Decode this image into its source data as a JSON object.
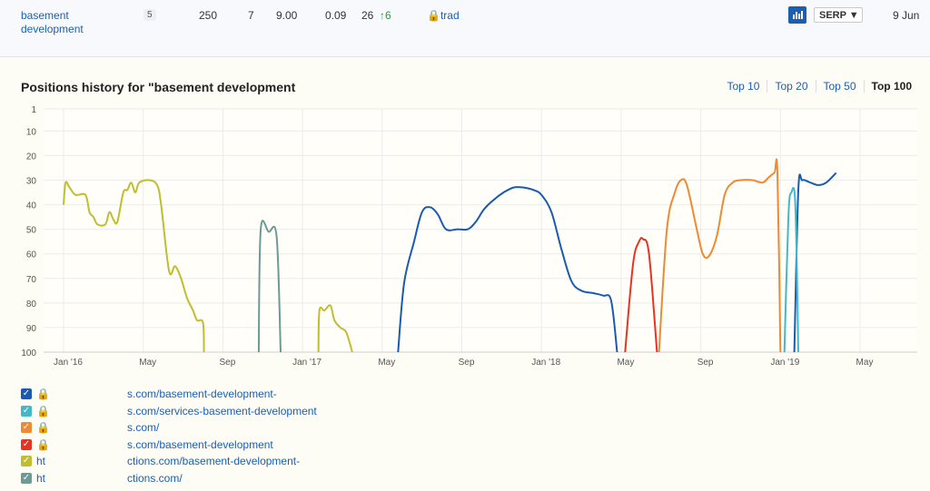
{
  "keyword_row": {
    "keyword": "basement development",
    "badge": "5",
    "volume": "250",
    "kd": "7",
    "cpc": "9.00",
    "ctr": "0.09",
    "position": "26",
    "position_change": "↑6",
    "tag": "trad",
    "serp_label": "SERP ▼",
    "date": "9 Jun"
  },
  "section": {
    "title": "Positions history for \"basement development"
  },
  "tabs": [
    {
      "label": "Top 10",
      "active": false
    },
    {
      "label": "Top 20",
      "active": false
    },
    {
      "label": "Top 50",
      "active": false
    },
    {
      "label": "Top 100",
      "active": true
    }
  ],
  "chart_data": {
    "type": "line",
    "y_ticks": [
      "1",
      "10",
      "20",
      "30",
      "40",
      "50",
      "60",
      "70",
      "80",
      "90",
      "100"
    ],
    "ylim": [
      1,
      100
    ],
    "y_inverted": true,
    "x_ticks": [
      "Jan '16",
      "May",
      "Sep",
      "Jan '17",
      "May",
      "Sep",
      "Jan '18",
      "May",
      "Sep",
      "Jan '19",
      "May"
    ],
    "grid": true,
    "series": [
      {
        "color": "#c0bd31",
        "segments": [
          [
            [
              0,
              40
            ],
            [
              0.1,
              31
            ],
            [
              0.3,
              33
            ],
            [
              0.6,
              36
            ],
            [
              1.1,
              36
            ],
            [
              1.3,
              43
            ],
            [
              1.5,
              45
            ],
            [
              1.7,
              48
            ],
            [
              2.1,
              48
            ],
            [
              2.3,
              43
            ],
            [
              2.5,
              46
            ],
            [
              2.7,
              47
            ],
            [
              3.0,
              35
            ],
            [
              3.2,
              34
            ],
            [
              3.4,
              31
            ],
            [
              3.6,
              35
            ],
            [
              3.8,
              31
            ],
            [
              4.3,
              30
            ],
            [
              4.7,
              32
            ],
            [
              4.9,
              40
            ],
            [
              5.3,
              67
            ],
            [
              5.6,
              65
            ],
            [
              5.9,
              70
            ],
            [
              6.2,
              78
            ],
            [
              6.5,
              83
            ],
            [
              6.7,
              87
            ],
            [
              7.0,
              88
            ],
            [
              7.05,
              100
            ]
          ],
          [
            [
              12.8,
              100
            ],
            [
              12.85,
              83
            ],
            [
              13.1,
              83
            ],
            [
              13.4,
              81
            ],
            [
              13.6,
              87
            ],
            [
              13.9,
              90
            ],
            [
              14.2,
              92
            ],
            [
              14.5,
              100
            ]
          ]
        ]
      },
      {
        "color": "#6e9a94",
        "segments": [
          [
            [
              9.8,
              100
            ],
            [
              9.9,
              50
            ],
            [
              10.3,
              51
            ],
            [
              10.7,
              53
            ],
            [
              10.9,
              100
            ]
          ]
        ]
      },
      {
        "color": "#1a5bb0",
        "segments": [
          [
            [
              16.8,
              100
            ],
            [
              17.1,
              72
            ],
            [
              17.6,
              55
            ],
            [
              18.0,
              43
            ],
            [
              18.4,
              41
            ],
            [
              18.8,
              44
            ],
            [
              19.2,
              50
            ],
            [
              19.8,
              50
            ],
            [
              20.3,
              50
            ],
            [
              20.7,
              47
            ],
            [
              21.1,
              42
            ],
            [
              21.6,
              38
            ],
            [
              22.1,
              35
            ],
            [
              22.6,
              33
            ],
            [
              23.1,
              33
            ],
            [
              23.6,
              34
            ],
            [
              24.0,
              36
            ],
            [
              24.5,
              43
            ],
            [
              25.0,
              58
            ],
            [
              25.5,
              71
            ],
            [
              26.0,
              75
            ],
            [
              26.6,
              76
            ],
            [
              27.1,
              77
            ],
            [
              27.5,
              79
            ],
            [
              27.8,
              100
            ]
          ],
          [
            [
              36.7,
              100
            ],
            [
              36.9,
              34
            ],
            [
              37.1,
              30
            ],
            [
              37.5,
              31
            ],
            [
              37.9,
              32
            ],
            [
              38.3,
              31
            ],
            [
              38.8,
              27
            ]
          ]
        ]
      },
      {
        "color": "#e63322",
        "segments": [
          [
            [
              28.2,
              100
            ],
            [
              28.6,
              64
            ],
            [
              28.9,
              55
            ],
            [
              29.1,
              54
            ],
            [
              29.4,
              60
            ],
            [
              29.8,
              100
            ]
          ]
        ]
      },
      {
        "color": "#ee8a33",
        "segments": [
          [
            [
              29.9,
              100
            ],
            [
              30.3,
              50
            ],
            [
              30.7,
              35
            ],
            [
              31.0,
              30
            ],
            [
              31.3,
              32
            ],
            [
              31.8,
              50
            ],
            [
              32.1,
              60
            ],
            [
              32.4,
              61
            ],
            [
              32.8,
              53
            ],
            [
              33.2,
              36
            ],
            [
              33.6,
              31
            ],
            [
              34.0,
              30
            ],
            [
              34.6,
              30
            ],
            [
              35.1,
              31
            ],
            [
              35.4,
              29
            ],
            [
              35.7,
              27
            ],
            [
              35.85,
              27
            ],
            [
              36.0,
              100
            ]
          ]
        ]
      },
      {
        "color": "#43b8c8",
        "segments": [
          [
            [
              36.2,
              100
            ],
            [
              36.4,
              45
            ],
            [
              36.55,
              35
            ],
            [
              36.75,
              40
            ],
            [
              36.9,
              100
            ]
          ]
        ]
      }
    ]
  },
  "legend": [
    {
      "checkbox_color": "#1a5bb0",
      "prefix": "🔒",
      "url": "s.com/basement-development-"
    },
    {
      "checkbox_color": "#43b8c8",
      "prefix": "🔒",
      "url": "s.com/services-basement-development"
    },
    {
      "checkbox_color": "#ee8a33",
      "prefix": "🔒",
      "url": "s.com/"
    },
    {
      "checkbox_color": "#e63322",
      "prefix": "🔒",
      "url": "s.com/basement-development"
    },
    {
      "checkbox_color": "#c0bd31",
      "prefix": "ht",
      "url": "ctions.com/basement-development-"
    },
    {
      "checkbox_color": "#6e9a94",
      "prefix": "ht",
      "url": "ctions.com/"
    }
  ]
}
